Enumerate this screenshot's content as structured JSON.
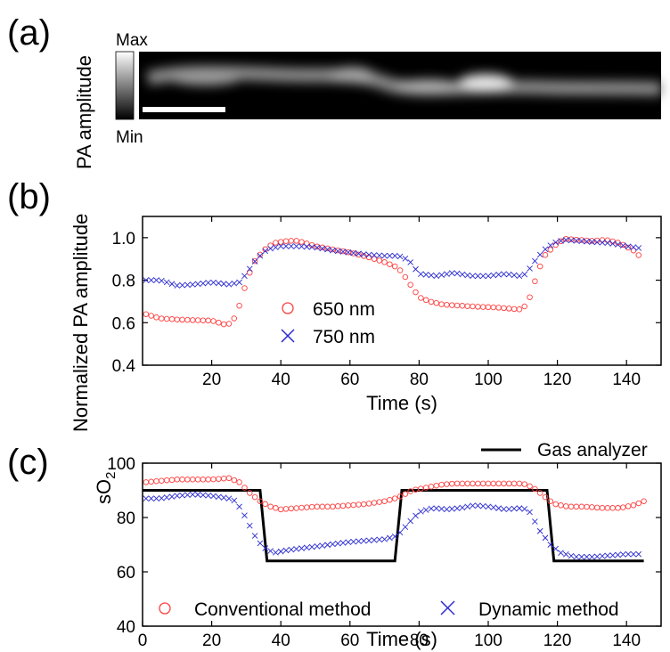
{
  "panels": {
    "a": "(a)",
    "b": "(b)",
    "c": "(c)"
  },
  "image_panel": {
    "ylabel": "PA amplitude",
    "colorbar_max": "Max",
    "colorbar_min": "Min"
  },
  "colors": {
    "conventional": "#ff4040",
    "dynamic": "#2a2ad0",
    "gas_analyzer": "#000000"
  },
  "chart_data": [
    {
      "type": "scatter",
      "panel": "(b)",
      "xlabel": "Time (s)",
      "ylabel": "Normalized PA amplitude",
      "xlim": [
        0,
        150
      ],
      "ylim": [
        0.4,
        1.1
      ],
      "xticks": [
        20,
        40,
        60,
        80,
        100,
        120,
        140
      ],
      "yticks": [
        0.4,
        0.6,
        0.8,
        1.0
      ],
      "ytick_labels": [
        "0.4",
        "0.6",
        "0.8",
        "1.0"
      ],
      "legend_position": "center-left",
      "series": [
        {
          "name": "650 nm",
          "marker": "circle",
          "color": "#ff4040",
          "points": [
            [
              1,
              0.64
            ],
            [
              5,
              0.62
            ],
            [
              10,
              0.615
            ],
            [
              15,
              0.612
            ],
            [
              20,
              0.61
            ],
            [
              24,
              0.59
            ],
            [
              26,
              0.6
            ],
            [
              28,
              0.68
            ],
            [
              30,
              0.79
            ],
            [
              32,
              0.88
            ],
            [
              35,
              0.94
            ],
            [
              38,
              0.975
            ],
            [
              42,
              0.985
            ],
            [
              45,
              0.985
            ],
            [
              50,
              0.96
            ],
            [
              55,
              0.945
            ],
            [
              60,
              0.93
            ],
            [
              65,
              0.91
            ],
            [
              70,
              0.885
            ],
            [
              73,
              0.865
            ],
            [
              75,
              0.84
            ],
            [
              77,
              0.79
            ],
            [
              80,
              0.72
            ],
            [
              83,
              0.7
            ],
            [
              87,
              0.685
            ],
            [
              92,
              0.68
            ],
            [
              97,
              0.675
            ],
            [
              102,
              0.672
            ],
            [
              107,
              0.665
            ],
            [
              110,
              0.662
            ],
            [
              112,
              0.72
            ],
            [
              114,
              0.82
            ],
            [
              116,
              0.91
            ],
            [
              119,
              0.96
            ],
            [
              122,
              0.995
            ],
            [
              126,
              0.99
            ],
            [
              130,
              0.985
            ],
            [
              134,
              0.99
            ],
            [
              138,
              0.975
            ],
            [
              142,
              0.94
            ],
            [
              144,
              0.91
            ]
          ]
        },
        {
          "name": "750 nm",
          "marker": "x",
          "color": "#2a2ad0",
          "points": [
            [
              1,
              0.8
            ],
            [
              5,
              0.8
            ],
            [
              10,
              0.775
            ],
            [
              15,
              0.78
            ],
            [
              20,
              0.79
            ],
            [
              25,
              0.78
            ],
            [
              28,
              0.79
            ],
            [
              30,
              0.83
            ],
            [
              33,
              0.9
            ],
            [
              36,
              0.945
            ],
            [
              40,
              0.96
            ],
            [
              45,
              0.96
            ],
            [
              50,
              0.955
            ],
            [
              55,
              0.94
            ],
            [
              60,
              0.93
            ],
            [
              65,
              0.92
            ],
            [
              70,
              0.915
            ],
            [
              74,
              0.915
            ],
            [
              77,
              0.895
            ],
            [
              80,
              0.83
            ],
            [
              85,
              0.82
            ],
            [
              90,
              0.835
            ],
            [
              95,
              0.82
            ],
            [
              100,
              0.82
            ],
            [
              105,
              0.83
            ],
            [
              109,
              0.82
            ],
            [
              111,
              0.83
            ],
            [
              113,
              0.88
            ],
            [
              116,
              0.94
            ],
            [
              119,
              0.975
            ],
            [
              122,
              0.99
            ],
            [
              126,
              0.985
            ],
            [
              130,
              0.98
            ],
            [
              135,
              0.975
            ],
            [
              140,
              0.96
            ],
            [
              144,
              0.95
            ]
          ]
        }
      ]
    },
    {
      "type": "line",
      "panel": "(c)",
      "xlabel": "Time (s)",
      "ylabel": "sO2",
      "ylabel_main": "sO",
      "ylabel_sub": "2",
      "xlim": [
        0,
        150
      ],
      "ylim": [
        40,
        100
      ],
      "xticks": [
        0,
        20,
        40,
        60,
        80,
        100,
        120,
        140
      ],
      "yticks": [
        40,
        60,
        80,
        100
      ],
      "legend_position": "bottom",
      "series": [
        {
          "name": "Gas analyzer",
          "marker": "line",
          "color": "#000000",
          "points": [
            [
              0,
              90
            ],
            [
              34,
              90
            ],
            [
              36,
              64
            ],
            [
              73,
              64
            ],
            [
              75,
              90
            ],
            [
              117,
              90
            ],
            [
              119,
              64
            ],
            [
              145,
              64
            ]
          ]
        },
        {
          "name": "Conventional method",
          "marker": "circle",
          "color": "#ff4040",
          "points": [
            [
              1,
              93
            ],
            [
              5,
              93.5
            ],
            [
              10,
              94
            ],
            [
              15,
              94
            ],
            [
              20,
              94
            ],
            [
              25,
              94.5
            ],
            [
              28,
              93
            ],
            [
              31,
              89
            ],
            [
              34,
              86
            ],
            [
              37,
              84
            ],
            [
              40,
              83
            ],
            [
              45,
              83.5
            ],
            [
              50,
              84
            ],
            [
              55,
              84
            ],
            [
              60,
              84.5
            ],
            [
              65,
              85
            ],
            [
              70,
              86
            ],
            [
              73,
              87
            ],
            [
              75,
              88
            ],
            [
              78,
              90
            ],
            [
              82,
              91
            ],
            [
              86,
              92
            ],
            [
              90,
              92.5
            ],
            [
              95,
              92.5
            ],
            [
              100,
              92.5
            ],
            [
              105,
              92.5
            ],
            [
              110,
              92.5
            ],
            [
              113,
              91
            ],
            [
              116,
              88
            ],
            [
              119,
              85
            ],
            [
              123,
              84
            ],
            [
              128,
              84
            ],
            [
              133,
              83.5
            ],
            [
              138,
              83.5
            ],
            [
              142,
              84.5
            ],
            [
              145,
              86
            ]
          ]
        },
        {
          "name": "Dynamic method",
          "marker": "x",
          "color": "#2a2ad0",
          "points": [
            [
              1,
              87
            ],
            [
              5,
              87
            ],
            [
              10,
              88
            ],
            [
              15,
              88.5
            ],
            [
              20,
              88
            ],
            [
              25,
              87
            ],
            [
              27,
              86
            ],
            [
              29,
              82
            ],
            [
              31,
              77
            ],
            [
              33,
              72
            ],
            [
              35,
              69
            ],
            [
              38,
              67
            ],
            [
              42,
              68
            ],
            [
              48,
              69
            ],
            [
              54,
              70
            ],
            [
              60,
              71
            ],
            [
              65,
              71.5
            ],
            [
              70,
              72
            ],
            [
              73,
              73
            ],
            [
              75,
              75
            ],
            [
              77,
              78
            ],
            [
              80,
              82
            ],
            [
              84,
              83.5
            ],
            [
              88,
              83
            ],
            [
              92,
              83.5
            ],
            [
              96,
              84.5
            ],
            [
              100,
              84
            ],
            [
              105,
              83
            ],
            [
              110,
              83.5
            ],
            [
              112,
              82
            ],
            [
              115,
              75
            ],
            [
              118,
              70
            ],
            [
              121,
              67
            ],
            [
              125,
              65.5
            ],
            [
              130,
              65.5
            ],
            [
              135,
              66
            ],
            [
              140,
              66.5
            ],
            [
              144,
              66.5
            ]
          ]
        }
      ]
    }
  ]
}
